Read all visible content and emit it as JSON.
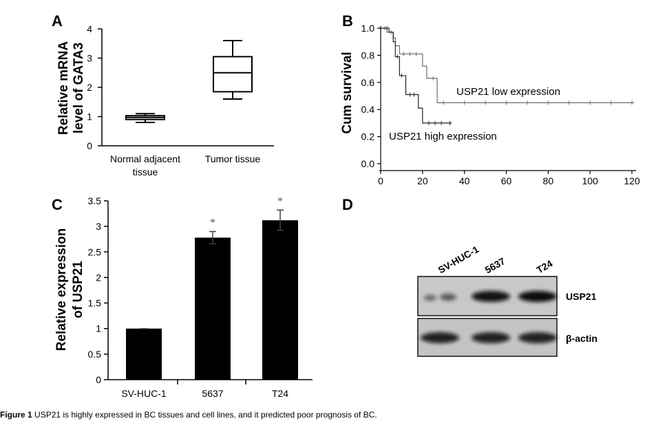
{
  "caption": {
    "label": "Figure 1",
    "text": " USP21 is highly expressed in BC tissues and cell lines, and it predicted poor prognosis of BC."
  },
  "chart_data": [
    {
      "panel": "A",
      "type": "box",
      "ylabel_line1": "Relative mRNA",
      "ylabel_line2": "level of GATA3",
      "ylim": [
        0,
        4
      ],
      "yticks": [
        "0",
        "1",
        "2",
        "3",
        "4"
      ],
      "categories": [
        {
          "line1": "Normal adjacent",
          "line2": "tissue"
        },
        {
          "line1": "Tumor tissue",
          "line2": ""
        }
      ],
      "boxes": [
        {
          "min": 0.8,
          "q1": 0.9,
          "median": 0.97,
          "q3": 1.03,
          "max": 1.1
        },
        {
          "min": 1.6,
          "q1": 1.85,
          "median": 2.5,
          "q3": 3.05,
          "max": 3.6
        }
      ]
    },
    {
      "panel": "B",
      "type": "line",
      "subtype": "kaplan-meier",
      "ylabel": "Cum survival",
      "xlim": [
        0,
        120
      ],
      "ylim": [
        0,
        1
      ],
      "xticks": [
        "0",
        "20",
        "40",
        "60",
        "80",
        "100",
        "120"
      ],
      "yticks": [
        "0.0",
        "0.2",
        "0.4",
        "0.6",
        "0.8",
        "1.0"
      ],
      "series": [
        {
          "name": "USP21 low expression",
          "color": "#6e6e6e",
          "steps": [
            [
              0,
              1.0
            ],
            [
              3,
              0.97
            ],
            [
              6,
              0.93
            ],
            [
              7,
              0.87
            ],
            [
              9,
              0.81
            ],
            [
              20,
              0.72
            ],
            [
              22,
              0.63
            ],
            [
              27,
              0.45
            ],
            [
              121,
              0.45
            ]
          ],
          "censored": [
            [
              2,
              1.0
            ],
            [
              5,
              0.97
            ],
            [
              11,
              0.81
            ],
            [
              14,
              0.81
            ],
            [
              17,
              0.81
            ],
            [
              25,
              0.63
            ],
            [
              30,
              0.45
            ],
            [
              40,
              0.45
            ],
            [
              50,
              0.45
            ],
            [
              60,
              0.45
            ],
            [
              70,
              0.45
            ],
            [
              80,
              0.45
            ],
            [
              90,
              0.45
            ],
            [
              100,
              0.45
            ],
            [
              110,
              0.45
            ],
            [
              120,
              0.45
            ]
          ]
        },
        {
          "name": "USP21 high expression",
          "color": "#222222",
          "steps": [
            [
              0,
              1.0
            ],
            [
              4,
              0.97
            ],
            [
              6,
              0.9
            ],
            [
              7,
              0.79
            ],
            [
              9,
              0.65
            ],
            [
              12,
              0.51
            ],
            [
              18,
              0.41
            ],
            [
              20,
              0.3
            ],
            [
              34,
              0.3
            ]
          ],
          "censored": [
            [
              3,
              1.0
            ],
            [
              8,
              0.79
            ],
            [
              10,
              0.65
            ],
            [
              14,
              0.51
            ],
            [
              16,
              0.51
            ],
            [
              23,
              0.3
            ],
            [
              26,
              0.3
            ],
            [
              29,
              0.3
            ],
            [
              33,
              0.3
            ]
          ]
        }
      ]
    },
    {
      "panel": "C",
      "type": "bar",
      "ylabel_line1": "Relative expression",
      "ylabel_line2": "of USP21",
      "ylim": [
        0,
        3.5
      ],
      "yticks": [
        "0",
        "0.5",
        "1",
        "1.5",
        "2",
        "2.5",
        "3",
        "3.5"
      ],
      "categories": [
        "SV-HUC-1",
        "5637",
        "T24"
      ],
      "values": [
        1.0,
        2.78,
        3.12
      ],
      "errors": [
        0.01,
        0.12,
        0.2
      ],
      "annotations": [
        "",
        "*",
        "*"
      ],
      "color": "#000000"
    }
  ],
  "blot": {
    "panel": "D",
    "lanes": [
      "SV-HUC-1",
      "5637",
      "T24"
    ],
    "bands": [
      {
        "label": "USP21",
        "intensity": [
          0.25,
          0.95,
          1.0
        ]
      },
      {
        "label": "β-actin",
        "intensity": [
          0.85,
          0.85,
          0.85
        ]
      }
    ]
  }
}
